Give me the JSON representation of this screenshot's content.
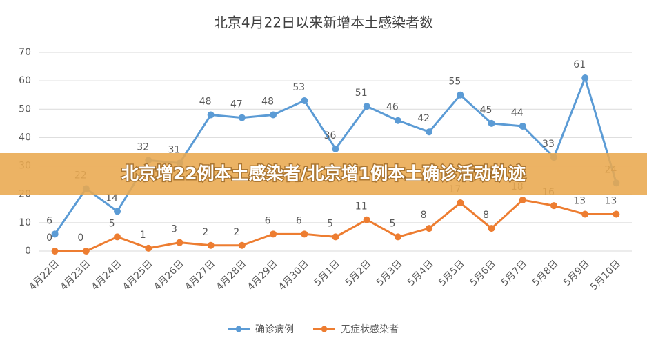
{
  "chart_data": {
    "type": "line",
    "title": "北京4月22日以来新增本土感染者数",
    "categories": [
      "4月22日",
      "4月23日",
      "4月24日",
      "4月25日",
      "4月26日",
      "4月27日",
      "4月28日",
      "4月29日",
      "4月30日",
      "5月1日",
      "5月2日",
      "5月3日",
      "5月4日",
      "5月5日",
      "5月6日",
      "5月7日",
      "5月8日",
      "5月9日",
      "5月10日"
    ],
    "series": [
      {
        "name": "确诊病例",
        "color": "#5b9bd5",
        "values": [
          6,
          22,
          14,
          32,
          31,
          48,
          47,
          48,
          53,
          36,
          51,
          46,
          42,
          55,
          45,
          44,
          33,
          61,
          24
        ]
      },
      {
        "name": "无症状感染者",
        "color": "#ed7d31",
        "values": [
          0,
          0,
          5,
          1,
          3,
          2,
          2,
          6,
          6,
          5,
          11,
          5,
          8,
          17,
          8,
          18,
          16,
          13,
          13
        ]
      }
    ],
    "ylim": [
      0,
      70
    ],
    "yticks": [
      0,
      10,
      20,
      30,
      40,
      50,
      60,
      70
    ],
    "grid": true,
    "legend": "bottom",
    "banner": "北京增22例本土感染者/北京增1例本土确诊活动轨迹"
  }
}
